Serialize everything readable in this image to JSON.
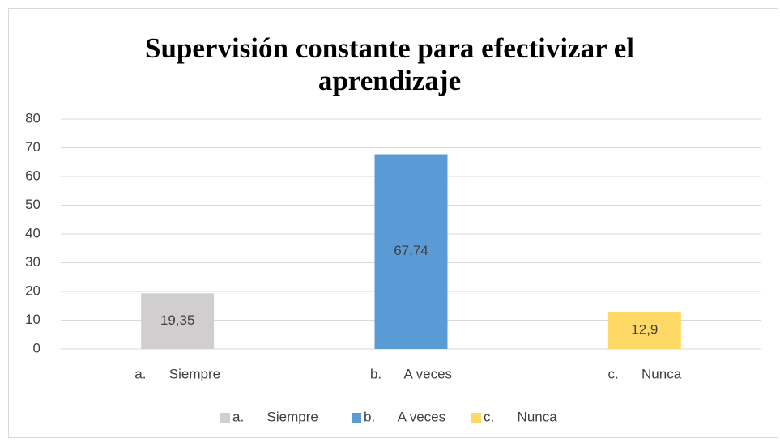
{
  "chart_data": {
    "type": "bar",
    "title": "Supervisión constante para efectivizar el aprendizaje",
    "categories": [
      "a.      Siempre",
      "b.      A veces",
      "c.      Nunca"
    ],
    "values": [
      19.35,
      67.74,
      12.9
    ],
    "value_labels": [
      "19,35",
      "67,74",
      "12,9"
    ],
    "colors": [
      "#d0cece",
      "#5b9bd5",
      "#ffd966"
    ],
    "ylim": [
      0,
      80
    ],
    "yticks": [
      0,
      10,
      20,
      30,
      40,
      50,
      60,
      70,
      80
    ],
    "grid": true,
    "legend": "bottom"
  }
}
